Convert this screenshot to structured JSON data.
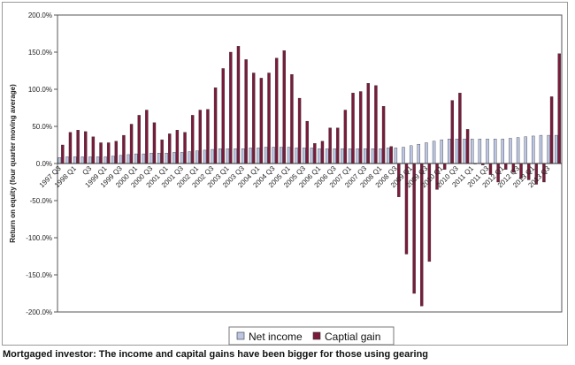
{
  "caption": "Mortgaged investor: The income and capital gains have been bigger for those using gearing",
  "chart_data": {
    "type": "bar",
    "ylabel": "Return on equity (four quarter moving average)",
    "xlabel": "",
    "ylim": [
      -200,
      200
    ],
    "y_ticks": [
      "200.0%",
      "150.0%",
      "100.0%",
      "50.0%",
      "0.0%",
      "-50.0%",
      "-100.0%",
      "-150.0%",
      "-200.0%"
    ],
    "x_tick_labels": [
      "1997 Q3",
      "1998 Q1",
      "Q3",
      "1999 Q1",
      "1999 Q3",
      "2000 Q1",
      "2000 Q3",
      "2001 Q1",
      "2001 Q3",
      "2002 Q1",
      "2002 Q3",
      "2003 Q1",
      "2003 Q3",
      "2004 Q1",
      "2004 Q3",
      "2005 Q1",
      "2005 Q3",
      "2006 Q1",
      "2006 Q3",
      "2007 Q1",
      "2007 Q3",
      "2008 Q1",
      "2008 Q3",
      "2009 Q1",
      "2009 Q3",
      "2010 Q1",
      "2010 Q3",
      "2011 Q1",
      "2011 Q3",
      "2012 Q1",
      "2012 Q3",
      "2013 Q1",
      "2013 Q3"
    ],
    "categories": [
      "1997 Q3",
      "1997 Q4",
      "1998 Q1",
      "1998 Q2",
      "1998 Q3",
      "1998 Q4",
      "1999 Q1",
      "1999 Q2",
      "1999 Q3",
      "1999 Q4",
      "2000 Q1",
      "2000 Q2",
      "2000 Q3",
      "2000 Q4",
      "2001 Q1",
      "2001 Q2",
      "2001 Q3",
      "2001 Q4",
      "2002 Q1",
      "2002 Q2",
      "2002 Q3",
      "2002 Q4",
      "2003 Q1",
      "2003 Q2",
      "2003 Q3",
      "2003 Q4",
      "2004 Q1",
      "2004 Q2",
      "2004 Q3",
      "2004 Q4",
      "2005 Q1",
      "2005 Q2",
      "2005 Q3",
      "2005 Q4",
      "2006 Q1",
      "2006 Q2",
      "2006 Q3",
      "2006 Q4",
      "2007 Q1",
      "2007 Q2",
      "2007 Q3",
      "2007 Q4",
      "2008 Q1",
      "2008 Q2",
      "2008 Q3",
      "2008 Q4",
      "2009 Q1",
      "2009 Q2",
      "2009 Q3",
      "2009 Q4",
      "2010 Q1",
      "2010 Q2",
      "2010 Q3",
      "2010 Q4",
      "2011 Q1",
      "2011 Q2",
      "2011 Q3",
      "2011 Q4",
      "2012 Q1",
      "2012 Q2",
      "2012 Q3",
      "2012 Q4",
      "2013 Q1",
      "2013 Q2",
      "2013 Q3",
      "2013 Q4"
    ],
    "series": [
      {
        "name": "Net income",
        "color": "#bcc6e4",
        "values": [
          8,
          9,
          9,
          9,
          9,
          9,
          9,
          10,
          11,
          12,
          13,
          13,
          14,
          14,
          14,
          15,
          15,
          16,
          17,
          18,
          19,
          20,
          20,
          20,
          20,
          21,
          21,
          22,
          22,
          22,
          22,
          21,
          21,
          21,
          20,
          20,
          20,
          20,
          20,
          20,
          20,
          20,
          20,
          21,
          21,
          22,
          24,
          26,
          28,
          30,
          32,
          33,
          33,
          33,
          33,
          33,
          33,
          33,
          33,
          34,
          35,
          36,
          37,
          38,
          38,
          38
        ]
      },
      {
        "name": "Captial gain",
        "color": "#7a1b3c",
        "values": [
          25,
          42,
          45,
          43,
          36,
          28,
          28,
          30,
          38,
          53,
          65,
          72,
          55,
          32,
          40,
          45,
          42,
          65,
          72,
          73,
          102,
          128,
          150,
          158,
          140,
          122,
          115,
          122,
          142,
          152,
          120,
          88,
          57,
          27,
          30,
          48,
          48,
          72,
          95,
          97,
          108,
          105,
          77,
          23,
          -45,
          -122,
          -175,
          -192,
          -132,
          -35,
          -8,
          85,
          95,
          46,
          0,
          -2,
          -15,
          -25,
          -8,
          -12,
          -20,
          -22,
          -28,
          -25,
          90,
          148
        ]
      }
    ],
    "legend_position": "bottom",
    "grid": false
  }
}
